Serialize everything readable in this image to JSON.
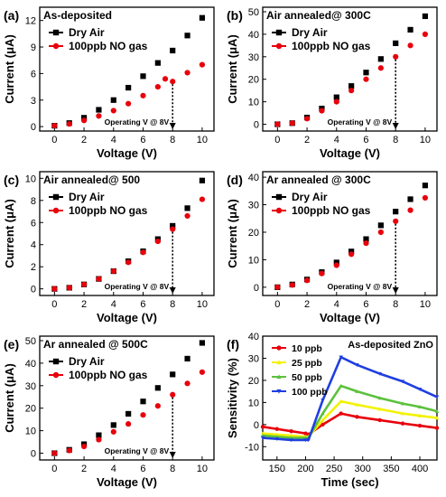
{
  "colors": {
    "dry": "#000000",
    "no": "#e8000b",
    "s10": "#e8000b",
    "s25": "#f2f200",
    "s50": "#5cc13c",
    "s100": "#1f3fe0"
  },
  "chart_data": [
    {
      "panel_label": "(a)",
      "type": "scatter",
      "title": "As-deposited",
      "xlabel": "Voltage (V)",
      "ylabel": "Current (μA)",
      "xlim": [
        -1,
        10.8
      ],
      "ylim": [
        -0.5,
        13.5
      ],
      "xticks": [
        0,
        2,
        4,
        6,
        8,
        10
      ],
      "yticks": [
        0,
        3,
        6,
        9,
        12
      ],
      "annotation": "Operating V @ 8V",
      "operating_v": 8,
      "legend_position": "top-left",
      "series": [
        {
          "name": "Dry Air",
          "marker": "square",
          "color": "#000000",
          "x": [
            0,
            1,
            2,
            3,
            4,
            5,
            6,
            7,
            8,
            9,
            10
          ],
          "y": [
            0.1,
            0.4,
            1.0,
            1.9,
            3.0,
            4.4,
            5.7,
            7.2,
            8.6,
            10.3,
            12.3
          ]
        },
        {
          "name": "100ppb NO gas",
          "marker": "circle",
          "color": "#e8000b",
          "x": [
            0,
            1,
            2,
            3,
            4,
            5,
            6,
            7,
            7.5,
            8,
            9,
            10
          ],
          "y": [
            0.1,
            0.3,
            0.7,
            1.2,
            1.8,
            2.6,
            3.5,
            4.5,
            5.4,
            5.1,
            6.1,
            7.0
          ]
        }
      ]
    },
    {
      "panel_label": "(b)",
      "type": "scatter",
      "title": "Air annealed@ 300C",
      "xlabel": "Voltage (V)",
      "ylabel": "Current (μA)",
      "xlim": [
        -1,
        10.8
      ],
      "ylim": [
        -3,
        52
      ],
      "xticks": [
        0,
        2,
        4,
        6,
        8,
        10
      ],
      "yticks": [
        0,
        10,
        20,
        30,
        40,
        50
      ],
      "annotation": "Operating V @ 8V",
      "operating_v": 8,
      "legend_position": "top-left",
      "series": [
        {
          "name": "Dry Air",
          "marker": "square",
          "color": "#000000",
          "x": [
            0,
            1,
            2,
            3,
            4,
            5,
            6,
            7,
            8,
            9,
            10
          ],
          "y": [
            0,
            0.5,
            3,
            7,
            12,
            17,
            23,
            29,
            36,
            42,
            48
          ]
        },
        {
          "name": "100ppb NO gas",
          "marker": "circle",
          "color": "#e8000b",
          "x": [
            0,
            1,
            2,
            3,
            4,
            5,
            6,
            7,
            8,
            9,
            10
          ],
          "y": [
            0,
            0.5,
            2.5,
            6,
            10,
            15,
            20,
            25,
            30,
            35,
            40
          ]
        }
      ]
    },
    {
      "panel_label": "(c)",
      "type": "scatter",
      "title": "Air annealed@ 500",
      "xlabel": "Voltage (V)",
      "ylabel": "Current (μA)",
      "xlim": [
        -1,
        10.8
      ],
      "ylim": [
        -0.6,
        10.6
      ],
      "xticks": [
        0,
        2,
        4,
        6,
        8,
        10
      ],
      "yticks": [
        0,
        2,
        4,
        6,
        8,
        10
      ],
      "annotation": "Operating V @ 8V",
      "operating_v": 8,
      "legend_position": "top-left",
      "series": [
        {
          "name": "Dry Air",
          "marker": "square",
          "color": "#000000",
          "x": [
            0,
            1,
            2,
            3,
            4,
            5,
            6,
            7,
            8,
            9,
            10
          ],
          "y": [
            0,
            0.1,
            0.4,
            0.9,
            1.6,
            2.5,
            3.4,
            4.5,
            5.7,
            7.3,
            9.8
          ]
        },
        {
          "name": "100ppb NO gas",
          "marker": "circle",
          "color": "#e8000b",
          "x": [
            0,
            1,
            2,
            3,
            4,
            5,
            6,
            7,
            8,
            9,
            10
          ],
          "y": [
            0,
            0.1,
            0.4,
            0.9,
            1.6,
            2.4,
            3.3,
            4.3,
            5.4,
            6.6,
            8.1
          ]
        }
      ]
    },
    {
      "panel_label": "(d)",
      "type": "scatter",
      "title": "Ar annealed @ 300C",
      "xlabel": "Voltage (V)",
      "ylabel": "Current (μA)",
      "xlim": [
        -1,
        10.8
      ],
      "ylim": [
        -3,
        42
      ],
      "xticks": [
        0,
        2,
        4,
        6,
        8,
        10
      ],
      "yticks": [
        0,
        10,
        20,
        30,
        40
      ],
      "annotation": "Operating V @ 8V",
      "operating_v": 8,
      "legend_position": "top-left",
      "series": [
        {
          "name": "Dry Air",
          "marker": "square",
          "color": "#000000",
          "x": [
            0,
            1,
            2,
            3,
            4,
            5,
            6,
            7,
            8,
            9,
            10
          ],
          "y": [
            0,
            1,
            2.8,
            5.5,
            9,
            13,
            17.5,
            22.5,
            27.5,
            32,
            37
          ]
        },
        {
          "name": "100ppb NO gas",
          "marker": "circle",
          "color": "#e8000b",
          "x": [
            0,
            1,
            2,
            3,
            4,
            5,
            6,
            7,
            8,
            9,
            10
          ],
          "y": [
            0,
            0.8,
            2.5,
            5,
            8,
            12,
            16,
            20,
            24,
            28,
            32.5
          ]
        }
      ]
    },
    {
      "panel_label": "(e)",
      "type": "scatter",
      "title": "Ar annealed @ 500C",
      "xlabel": "Voltage (V)",
      "ylabel": "Current (μA)",
      "xlim": [
        -1,
        10.8
      ],
      "ylim": [
        -3,
        52
      ],
      "xticks": [
        0,
        2,
        4,
        6,
        8,
        10
      ],
      "yticks": [
        0,
        10,
        20,
        30,
        40,
        50
      ],
      "annotation": "Operating V @ 8V",
      "operating_v": 8,
      "legend_position": "top-left",
      "series": [
        {
          "name": "Dry Air",
          "marker": "square",
          "color": "#000000",
          "x": [
            0,
            1,
            2,
            3,
            4,
            5,
            6,
            7,
            8,
            9,
            10
          ],
          "y": [
            0,
            1.5,
            4,
            8,
            12.5,
            17.5,
            23,
            29,
            35,
            42,
            49
          ]
        },
        {
          "name": "100ppb NO gas",
          "marker": "circle",
          "color": "#e8000b",
          "x": [
            0,
            1,
            2,
            3,
            4,
            5,
            6,
            7,
            8,
            9,
            10
          ],
          "y": [
            0,
            1.2,
            3,
            6,
            9.5,
            13,
            17,
            21,
            26,
            31,
            36
          ]
        }
      ]
    },
    {
      "panel_label": "(f)",
      "type": "line",
      "title": "As-deposited ZnO",
      "xlabel": "Time (sec)",
      "ylabel": "Sensitivity (%)",
      "xlim": [
        125,
        430
      ],
      "ylim": [
        -16,
        40
      ],
      "xticks": [
        150,
        200,
        250,
        300,
        350,
        400
      ],
      "yticks": [
        -10,
        0,
        10,
        20,
        30,
        40
      ],
      "legend_position": "top-left",
      "series": [
        {
          "name": "10 ppb",
          "marker": "circle",
          "color": "#e8000b",
          "x": [
            125,
            150,
            175,
            200,
            205,
            230,
            262,
            290,
            330,
            370,
            400,
            430
          ],
          "y": [
            -1,
            -2,
            -3,
            -4,
            -4.5,
            0,
            5,
            3.5,
            2,
            0.5,
            -0.5,
            -1.5
          ]
        },
        {
          "name": "25 ppb",
          "marker": "triangle-up",
          "color": "#f2f200",
          "x": [
            125,
            150,
            175,
            200,
            205,
            230,
            262,
            290,
            330,
            370,
            400,
            430
          ],
          "y": [
            -4,
            -4.5,
            -5,
            -5.5,
            -5.5,
            2,
            10.5,
            9,
            7,
            5,
            4,
            3
          ]
        },
        {
          "name": "50 ppb",
          "marker": "triangle-up",
          "color": "#5cc13c",
          "x": [
            125,
            150,
            175,
            200,
            205,
            230,
            262,
            290,
            330,
            370,
            400,
            430
          ],
          "y": [
            -5,
            -5.5,
            -6,
            -6,
            -6,
            5,
            17.5,
            15,
            12,
            9.5,
            8,
            6
          ]
        },
        {
          "name": "100 ppb",
          "marker": "triangle-down",
          "color": "#1f3fe0",
          "x": [
            125,
            150,
            175,
            200,
            205,
            230,
            262,
            290,
            330,
            370,
            400,
            430
          ],
          "y": [
            -6,
            -6.5,
            -7,
            -7,
            -7,
            11,
            30.5,
            27,
            23,
            19.5,
            16,
            12.5
          ]
        }
      ]
    }
  ]
}
